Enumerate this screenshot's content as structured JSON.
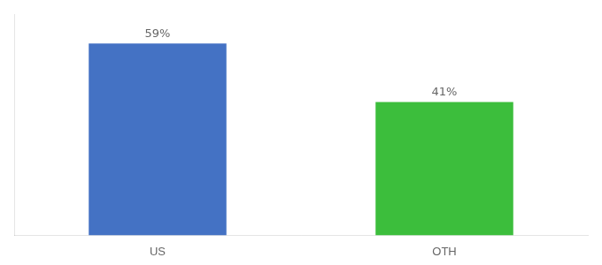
{
  "chart_data": {
    "type": "bar",
    "categories": [
      "US",
      "OTH"
    ],
    "values": [
      59,
      41
    ],
    "value_labels": [
      "59%",
      "41%"
    ],
    "colors": [
      "#4472c4",
      "#3cbe3c"
    ],
    "ylim": [
      0,
      68
    ],
    "grid": false,
    "data_labels": true,
    "tick_labels": "x"
  }
}
